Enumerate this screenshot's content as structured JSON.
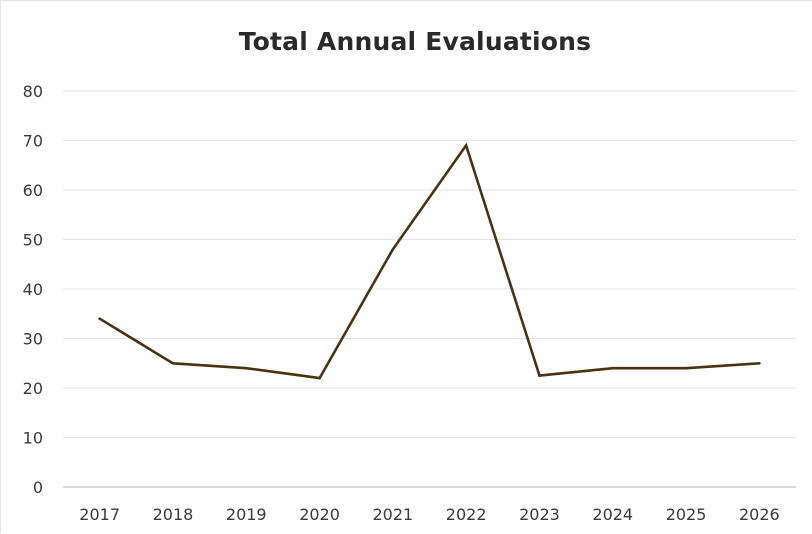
{
  "chart_data": {
    "type": "line",
    "title": "Total Annual Evaluations",
    "xlabel": "",
    "ylabel": "",
    "categories": [
      "2017",
      "2018",
      "2019",
      "2020",
      "2021",
      "2022",
      "2023",
      "2024",
      "2025",
      "2026"
    ],
    "series": [
      {
        "values": [
          34,
          25,
          24,
          22,
          48,
          69,
          22.5,
          24,
          24,
          25
        ]
      }
    ],
    "ylim": [
      0,
      80
    ],
    "yticks": [
      0,
      10,
      20,
      30,
      40,
      50,
      60,
      70,
      80
    ],
    "grid": true,
    "legend": "none",
    "colors": {
      "line": "#4a3212",
      "grid": "#e4e4e4",
      "axis": "#c8c8c8"
    }
  }
}
